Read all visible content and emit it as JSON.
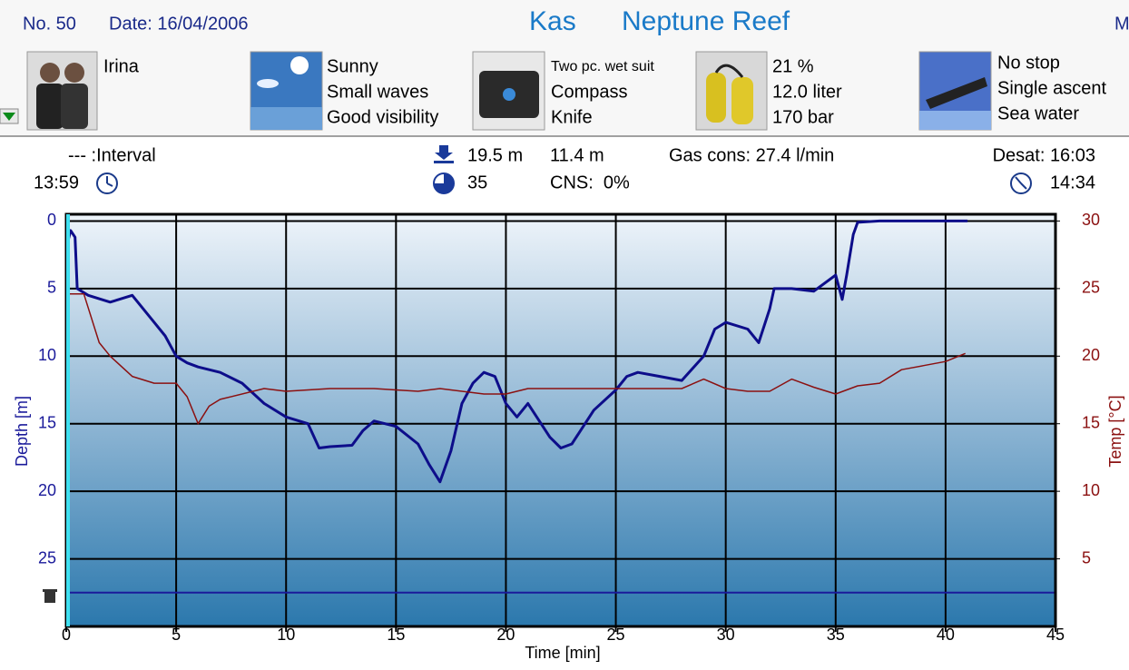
{
  "header": {
    "number": "No. 50",
    "date": "Date: 16/04/2006",
    "location": "Kas",
    "site": "Neptune Reef",
    "cut_text": "M"
  },
  "panels": [
    {
      "lines": [
        "Irina"
      ]
    },
    {
      "lines": [
        "Sunny",
        "Small waves",
        "Good visibility"
      ]
    },
    {
      "lines": [
        "Two pc. wet suit",
        "Compass",
        "Knife"
      ]
    },
    {
      "lines": [
        "21 %",
        "12.0 liter",
        "170 bar"
      ]
    },
    {
      "lines": [
        "No stop",
        "Single ascent",
        "Sea water"
      ]
    }
  ],
  "stats": {
    "interval": "--- :Interval",
    "interval_time": "13:59",
    "max_depth": "19.5 m",
    "avg_depth": "11.4 m",
    "duration": "35",
    "cns": "CNS:  0%",
    "gas": "Gas cons: 27.4 l/min",
    "desat": "Desat: 16:03",
    "time": "14:34"
  },
  "chart_data": {
    "type": "line",
    "x_label": "Time [min]",
    "y_label": "Depth [m]",
    "y2_label": "Temp [°C]",
    "xlim": [
      0,
      45
    ],
    "xticks": [
      0,
      5,
      10,
      15,
      20,
      25,
      30,
      35,
      40,
      45
    ],
    "ylim": [
      30,
      -0.5
    ],
    "yticks": [
      0,
      5,
      10,
      15,
      20,
      25
    ],
    "y2lim": [
      0,
      30.5
    ],
    "y2ticks": [
      5,
      10,
      15,
      20,
      25,
      30
    ],
    "grid": true,
    "limit_line": 27.5,
    "series": [
      {
        "name": "Depth",
        "color": "#0d0d8a",
        "x": [
          0,
          0.2,
          0.4,
          0.5,
          1,
          2,
          3,
          3.5,
          4,
          4.5,
          5,
          5.5,
          6,
          7,
          8,
          9,
          10,
          11,
          11.5,
          12,
          13,
          13.5,
          14,
          15,
          16,
          16.5,
          17,
          17.5,
          18,
          18.5,
          19,
          19.5,
          20,
          20.5,
          21,
          22,
          22.5,
          23,
          24,
          25,
          25.5,
          26,
          27,
          28,
          29,
          29.5,
          30,
          31,
          31.5,
          32,
          32.2,
          33,
          34,
          35,
          35.3,
          35.5,
          35.8,
          36,
          37,
          41
        ],
        "values": [
          2,
          0.7,
          1.2,
          5,
          5.5,
          6,
          5.5,
          6.5,
          7.5,
          8.5,
          10,
          10.5,
          10.8,
          11.2,
          12,
          13.5,
          14.5,
          15,
          16.8,
          16.7,
          16.6,
          15.5,
          14.8,
          15.2,
          16.5,
          18,
          19.3,
          17,
          13.5,
          12,
          11.2,
          11.5,
          13.5,
          14.5,
          13.5,
          16,
          16.8,
          16.5,
          14,
          12.5,
          11.5,
          11.2,
          11.5,
          11.8,
          10,
          8,
          7.5,
          8,
          9,
          6.5,
          5,
          5,
          5.2,
          4,
          5.8,
          4,
          1,
          0.1,
          0,
          0
        ]
      },
      {
        "name": "Temp",
        "color": "#8b1010",
        "axis": "y2",
        "x": [
          0,
          0.8,
          1.5,
          2,
          3,
          4,
          5,
          5.5,
          6,
          6.5,
          7,
          9,
          10,
          12,
          14,
          16,
          17,
          19,
          20,
          21,
          24,
          28,
          29,
          30,
          31,
          32,
          33,
          34,
          35,
          36,
          37,
          38,
          39,
          40,
          40.9
        ],
        "values": [
          24.6,
          24.6,
          21,
          20,
          18.5,
          18,
          18,
          17,
          15,
          16.3,
          16.8,
          17.6,
          17.4,
          17.6,
          17.6,
          17.4,
          17.6,
          17.2,
          17.2,
          17.6,
          17.6,
          17.6,
          18.3,
          17.6,
          17.4,
          17.4,
          18.3,
          17.7,
          17.2,
          17.8,
          18,
          19,
          19.3,
          19.6,
          20.2
        ]
      }
    ]
  }
}
